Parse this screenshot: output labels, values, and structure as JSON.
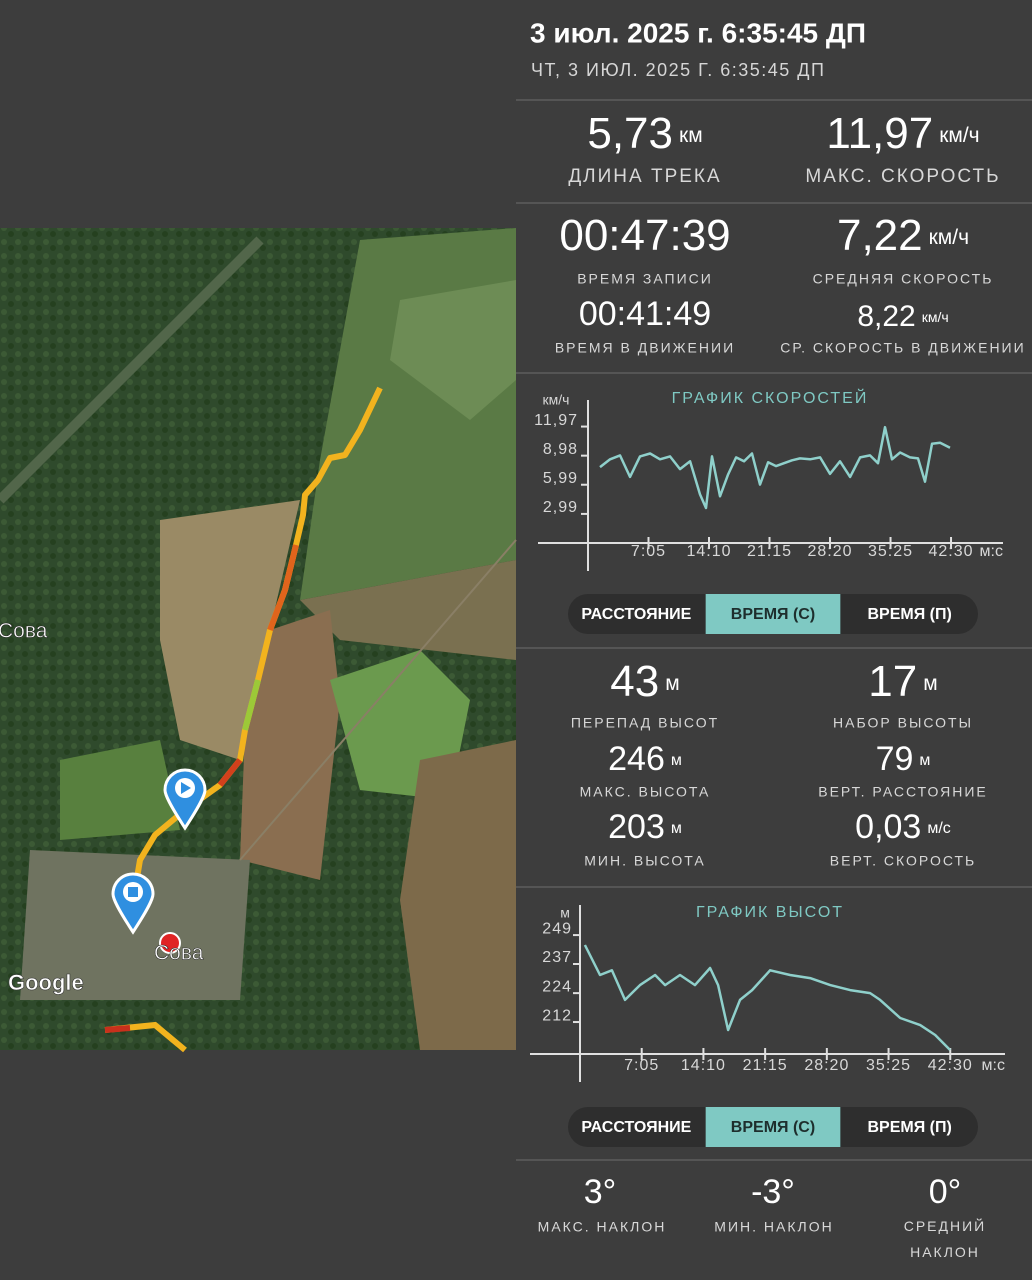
{
  "header": {
    "title": "3 июл. 2025 г. 6:35:45 ДП",
    "subtitle": "ЧТ, 3 ИЮЛ. 2025 Г. 6:35:45 ДП"
  },
  "map": {
    "places": [
      "Сова",
      "Сова"
    ],
    "attribution": "Google"
  },
  "summary": [
    {
      "value": "5,73",
      "unit": "км",
      "label": "ДЛИНА ТРЕКА"
    },
    {
      "value": "11,97",
      "unit": "км/ч",
      "label": "МАКС. СКОРОСТЬ"
    }
  ],
  "times": [
    {
      "value": "00:47:39",
      "label": "ВРЕМЯ ЗАПИСИ"
    },
    {
      "value": "7,22",
      "unit": "км/ч",
      "label": "СРЕДНЯЯ СКОРОСТЬ"
    },
    {
      "value": "00:41:49",
      "label": "ВРЕМЯ В ДВИЖЕНИИ"
    },
    {
      "value": "8,22",
      "unit": "км/ч",
      "label": "СР. СКОРОСТЬ В ДВИЖЕНИИ"
    }
  ],
  "speed_toggle": {
    "options": [
      "РАССТОЯНИЕ",
      "ВРЕМЯ (С)",
      "ВРЕМЯ (П)"
    ],
    "active": 1
  },
  "elevation": [
    {
      "value": "43",
      "unit": "м",
      "label": "ПЕРЕПАД ВЫСОТ"
    },
    {
      "value": "17",
      "unit": "м",
      "label": "НАБОР ВЫСОТЫ"
    },
    {
      "value": "246",
      "unit": "м",
      "label": "МАКС. ВЫСОТА"
    },
    {
      "value": "79",
      "unit": "м",
      "label": "ВЕРТ. РАССТОЯНИЕ"
    },
    {
      "value": "203",
      "unit": "м",
      "label": "МИН. ВЫСОТА"
    },
    {
      "value": "0,03",
      "unit": "м/с",
      "label": "ВЕРТ. СКОРОСТЬ"
    }
  ],
  "elevation_toggle": {
    "options": [
      "РАССТОЯНИЕ",
      "ВРЕМЯ (С)",
      "ВРЕМЯ (П)"
    ],
    "active": 1
  },
  "slopes": [
    {
      "value": "3°",
      "label": "МАКС. НАКЛОН"
    },
    {
      "value": "-3°",
      "label": "МИН. НАКЛОН"
    },
    {
      "value": "0°",
      "label": "СРЕДНИЙ НАКЛОН"
    }
  ],
  "chart_data": [
    {
      "type": "line",
      "title": "ГРАФИК СКОРОСТЕЙ",
      "y_unit": "км/ч",
      "x_unit": "м:с",
      "color": "#8fd0cb",
      "xlim": [
        0,
        2915
      ],
      "ylim": [
        0,
        14.7
      ],
      "xticks": [
        {
          "value": 425,
          "label": "7:05"
        },
        {
          "value": 850,
          "label": "14:10"
        },
        {
          "value": 1275,
          "label": "21:15"
        },
        {
          "value": 1700,
          "label": "28:20"
        },
        {
          "value": 2125,
          "label": "35:25"
        },
        {
          "value": 2550,
          "label": "42:30"
        }
      ],
      "yticks": [
        {
          "value": 2.99,
          "label": "2,99"
        },
        {
          "value": 5.99,
          "label": "5,99"
        },
        {
          "value": 8.98,
          "label": "8,98"
        },
        {
          "value": 11.97,
          "label": "11,97"
        }
      ],
      "x": [
        84,
        155,
        225,
        295,
        365,
        436,
        506,
        576,
        646,
        717,
        787,
        829,
        871,
        927,
        983,
        1040,
        1096,
        1152,
        1208,
        1265,
        1321,
        1377,
        1433,
        1489,
        1560,
        1630,
        1700,
        1770,
        1841,
        1911,
        1981,
        2037,
        2086,
        2135,
        2192,
        2262,
        2318,
        2367,
        2416,
        2473,
        2543
      ],
      "values": [
        7.8,
        8.6,
        9.0,
        6.8,
        8.9,
        9.2,
        8.6,
        8.9,
        7.6,
        8.4,
        5.0,
        3.6,
        8.9,
        4.8,
        7.0,
        8.8,
        8.4,
        9.2,
        6.0,
        8.3,
        7.9,
        8.2,
        8.5,
        8.7,
        8.6,
        8.8,
        7.1,
        8.4,
        6.8,
        8.8,
        9.0,
        8.2,
        11.9,
        8.6,
        9.3,
        8.8,
        8.7,
        6.3,
        10.2,
        10.3,
        9.8
      ]
    },
    {
      "type": "line",
      "title": "ГРАФИК ВЫСОТ",
      "y_unit": "м",
      "x_unit": "м:с",
      "color": "#8fd0cb",
      "xlim": [
        0,
        2927
      ],
      "ylim": [
        198.4,
        261.8
      ],
      "xticks": [
        {
          "value": 425,
          "label": "7:05"
        },
        {
          "value": 850,
          "label": "14:10"
        },
        {
          "value": 1275,
          "label": "21:15"
        },
        {
          "value": 1700,
          "label": "28:20"
        },
        {
          "value": 2125,
          "label": "35:25"
        },
        {
          "value": 2550,
          "label": "42:30"
        }
      ],
      "yticks": [
        {
          "value": 212,
          "label": "212"
        },
        {
          "value": 224.3,
          "label": "224"
        },
        {
          "value": 236.7,
          "label": "237"
        },
        {
          "value": 249,
          "label": "249"
        }
      ],
      "x": [
        34,
        138,
        220,
        310,
        413,
        517,
        586,
        689,
        792,
        896,
        951,
        1020,
        1102,
        1185,
        1309,
        1447,
        1585,
        1723,
        1860,
        1998,
        2067,
        2205,
        2343,
        2446,
        2549
      ],
      "values": [
        244.8,
        232,
        234,
        221.4,
        227.7,
        232,
        227.7,
        232,
        227.7,
        235,
        227.7,
        208.6,
        221.4,
        225.6,
        234,
        232,
        230.7,
        227.7,
        225.6,
        224.3,
        221.4,
        213.7,
        210.7,
        206.5,
        200.1
      ]
    }
  ]
}
